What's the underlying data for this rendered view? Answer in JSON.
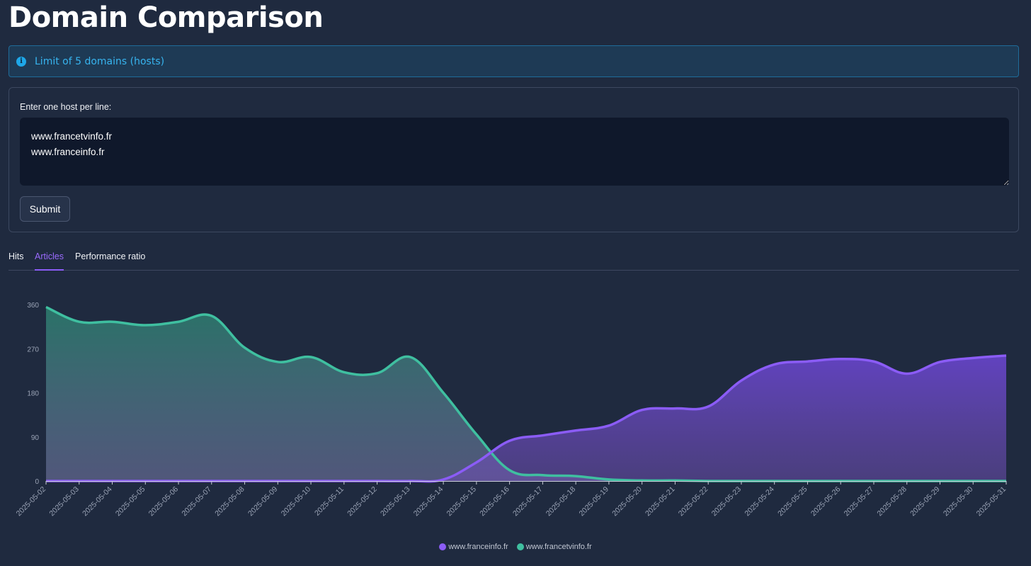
{
  "page": {
    "title": "Domain Comparison"
  },
  "info": {
    "icon": "info-icon",
    "text": "Limit of 5 domains (hosts)"
  },
  "form": {
    "label": "Enter one host per line:",
    "textarea_value": "www.francetvinfo.fr\nwww.franceinfo.fr",
    "submit_label": "Submit"
  },
  "tabs": [
    {
      "label": "Hits",
      "active": false
    },
    {
      "label": "Articles",
      "active": true
    },
    {
      "label": "Performance ratio",
      "active": false
    }
  ],
  "colors": {
    "franceinfo": "#8b5cf6",
    "francetvinfo": "#3fbfa0"
  },
  "chart_data": {
    "type": "area",
    "x": [
      "2025-05-02",
      "2025-05-03",
      "2025-05-04",
      "2025-05-05",
      "2025-05-06",
      "2025-05-07",
      "2025-05-08",
      "2025-05-09",
      "2025-05-10",
      "2025-05-11",
      "2025-05-12",
      "2025-05-13",
      "2025-05-14",
      "2025-05-15",
      "2025-05-16",
      "2025-05-17",
      "2025-05-18",
      "2025-05-19",
      "2025-05-20",
      "2025-05-21",
      "2025-05-22",
      "2025-05-23",
      "2025-05-24",
      "2025-05-25",
      "2025-05-26",
      "2025-05-27",
      "2025-05-28",
      "2025-05-29",
      "2025-05-30",
      "2025-05-31"
    ],
    "yticks": [
      0,
      90,
      180,
      270,
      360
    ],
    "ylim": [
      0,
      360
    ],
    "series": [
      {
        "name": "www.franceinfo.fr",
        "color": "#8b5cf6",
        "values": [
          0,
          0,
          0,
          0,
          0,
          0,
          0,
          0,
          0,
          0,
          0,
          0,
          3,
          38,
          82,
          93,
          103,
          113,
          145,
          148,
          152,
          205,
          238,
          244,
          249,
          244,
          219,
          243,
          251,
          256
        ]
      },
      {
        "name": "www.francetvinfo.fr",
        "color": "#3fbfa0",
        "values": [
          355,
          325,
          325,
          318,
          325,
          337,
          272,
          243,
          253,
          222,
          220,
          253,
          180,
          95,
          22,
          12,
          10,
          3,
          1,
          1,
          0,
          0,
          0,
          0,
          0,
          0,
          0,
          0,
          0,
          0
        ]
      }
    ]
  }
}
